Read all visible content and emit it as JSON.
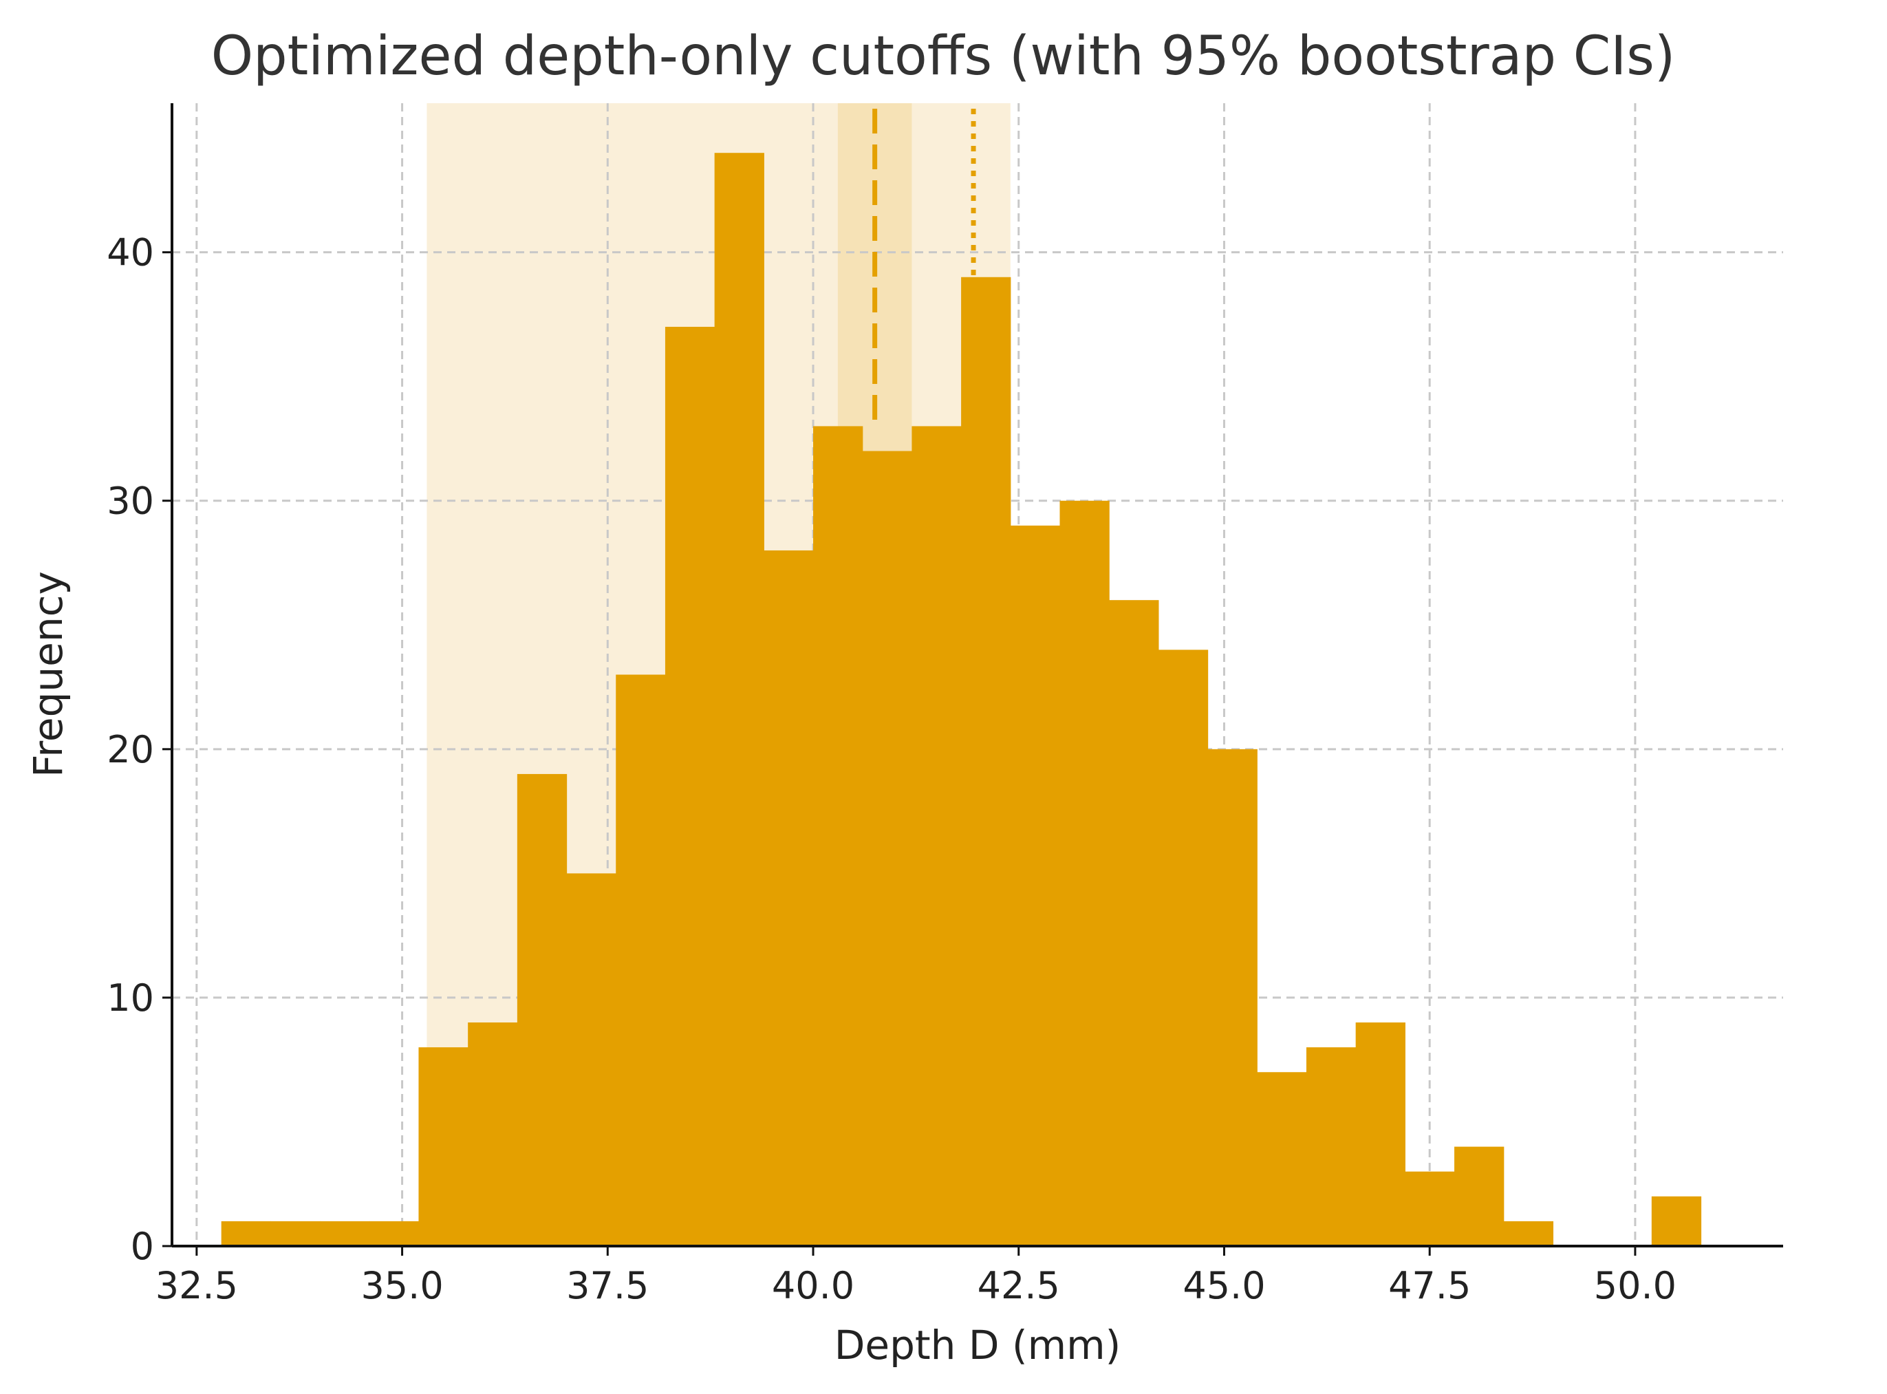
{
  "chart_data": {
    "type": "bar",
    "subtype": "histogram",
    "title": "Optimized depth-only cutoffs (with 95% bootstrap CIs)",
    "xlabel": "Depth D (mm)",
    "ylabel": "Frequency",
    "xlim": [
      32.2,
      51.8
    ],
    "ylim": [
      0,
      46
    ],
    "x_ticks": [
      "32.5",
      "35.0",
      "37.5",
      "40.0",
      "42.5",
      "45.0",
      "47.5",
      "50.0"
    ],
    "y_ticks": [
      "0",
      "10",
      "20",
      "30",
      "40"
    ],
    "grid": true,
    "bar_color": "#E4A000",
    "bin_edges": [
      32.8,
      33.4,
      34.0,
      34.6,
      35.2,
      35.8,
      36.4,
      37.0,
      37.6,
      38.2,
      38.8,
      39.4,
      40.0,
      40.6,
      41.2,
      41.8,
      42.4,
      43.0,
      43.6,
      44.2,
      44.8,
      45.4,
      46.0,
      46.6,
      47.2,
      47.8,
      48.4,
      49.0,
      49.6,
      50.2,
      50.8
    ],
    "counts": [
      1,
      1,
      1,
      1,
      8,
      9,
      19,
      15,
      23,
      37,
      44,
      28,
      33,
      32,
      33,
      39,
      29,
      30,
      26,
      24,
      20,
      7,
      8,
      9,
      3,
      4,
      1,
      0,
      0,
      2
    ],
    "ci_bands": [
      {
        "low": 35.3,
        "high": 42.4,
        "color": "#FAEFD9"
      },
      {
        "low": 40.3,
        "high": 41.2,
        "color": "#F6E2B6"
      }
    ],
    "cutoff_lines": [
      {
        "x": 40.75,
        "style": "dashed",
        "color": "#E4A000"
      },
      {
        "x": 41.95,
        "style": "dotted",
        "color": "#E4A000"
      }
    ]
  }
}
